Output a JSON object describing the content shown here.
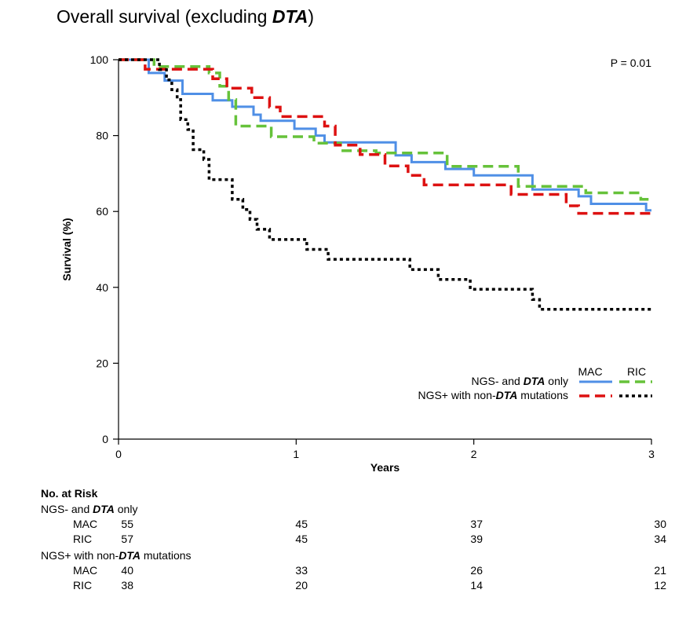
{
  "title": {
    "prefix": "Overall survival (excluding ",
    "italic": "DTA",
    "suffix": ")"
  },
  "chart_data": {
    "type": "line",
    "step": true,
    "xlabel": "Years",
    "ylabel": "Survival (%)",
    "xlim": [
      0,
      3
    ],
    "ylim": [
      0,
      100
    ],
    "xticks": [
      0,
      1,
      2,
      3
    ],
    "yticks": [
      0,
      20,
      40,
      60,
      80,
      100
    ],
    "annotation": "P = 0.01",
    "legend": {
      "placement": "bottom-right",
      "column_headers": [
        "MAC",
        "RIC"
      ],
      "rows": [
        {
          "label_parts": [
            [
              "NGS- and ",
              false
            ],
            [
              "DTA",
              true
            ],
            [
              " only",
              false
            ]
          ]
        },
        {
          "label_parts": [
            [
              "NGS+ with non-",
              false
            ],
            [
              "DTA",
              true
            ],
            [
              " mutations",
              false
            ]
          ]
        }
      ]
    },
    "series": [
      {
        "name": "NGS- and DTA only, MAC",
        "color": "#4f8fe6",
        "dash": "solid",
        "x": [
          0,
          0.17,
          0.26,
          0.36,
          0.53,
          0.64,
          0.76,
          0.8,
          0.99,
          1.11,
          1.16,
          1.25,
          1.4,
          1.56,
          1.65,
          1.84,
          2.0,
          2.33,
          2.59,
          2.66,
          2.97,
          3.0
        ],
        "y": [
          100,
          96.5,
          94.5,
          91,
          89.3,
          87.6,
          85.5,
          83.9,
          81.8,
          80,
          78.2,
          78.2,
          78.2,
          74.8,
          73,
          71.2,
          69.5,
          65.8,
          64,
          62,
          60.3,
          60.3
        ]
      },
      {
        "name": "NGS- and DTA only, RIC",
        "color": "#66c23a",
        "dash": "dash",
        "x": [
          0,
          0.2,
          0.51,
          0.57,
          0.62,
          0.66,
          0.86,
          1.1,
          1.25,
          1.45,
          1.57,
          1.85,
          2.25,
          2.36,
          2.63,
          2.94,
          3.0
        ],
        "y": [
          100,
          98.2,
          96.5,
          93,
          89.5,
          82.5,
          79.7,
          78,
          76,
          75.4,
          75.4,
          71.9,
          66.6,
          66.6,
          64.9,
          63.2,
          63.2
        ]
      },
      {
        "name": "NGS+ with non-DTA mutations, MAC",
        "color": "#dd1111",
        "dash": "dash",
        "x": [
          0,
          0.15,
          0.53,
          0.61,
          0.75,
          0.85,
          0.91,
          1.11,
          1.16,
          1.22,
          1.36,
          1.5,
          1.63,
          1.72,
          2.15,
          2.21,
          2.37,
          2.52,
          2.59,
          3.0
        ],
        "y": [
          100,
          97.5,
          95,
          92.5,
          90,
          87.5,
          85,
          85,
          82.5,
          77.5,
          75,
          72,
          69.5,
          67,
          67,
          64.5,
          64.5,
          61.5,
          59.5,
          59.5
        ]
      },
      {
        "name": "NGS+ with non-DTA mutations, RIC",
        "color": "#000000",
        "dash": "dot",
        "x": [
          0,
          0.23,
          0.27,
          0.3,
          0.33,
          0.35,
          0.39,
          0.42,
          0.48,
          0.51,
          0.64,
          0.7,
          0.74,
          0.78,
          0.85,
          1.06,
          1.18,
          1.27,
          1.64,
          1.8,
          1.86,
          1.98,
          2.33,
          2.37,
          3.0
        ],
        "y": [
          100,
          97.4,
          94.7,
          92.1,
          89.5,
          84.2,
          81.6,
          76.3,
          73.7,
          68.4,
          63.2,
          60.5,
          57.9,
          55.3,
          52.6,
          50,
          47.4,
          47.4,
          44.7,
          42.1,
          42.1,
          39.5,
          36.8,
          34.2,
          34.2
        ]
      }
    ]
  },
  "risk_table": {
    "header": "No. at Risk",
    "groups": [
      {
        "label_parts": [
          [
            "NGS- and ",
            false
          ],
          [
            "DTA",
            true
          ],
          [
            " only",
            false
          ]
        ],
        "rows": [
          {
            "arm": "MAC",
            "values": [
              "55",
              "45",
              "37",
              "30"
            ]
          },
          {
            "arm": "RIC",
            "values": [
              "57",
              "45",
              "39",
              "34"
            ]
          }
        ]
      },
      {
        "label_parts": [
          [
            "NGS+ with non-",
            false
          ],
          [
            "DTA",
            true
          ],
          [
            " mutations",
            false
          ]
        ],
        "rows": [
          {
            "arm": "MAC",
            "values": [
              "40",
              "33",
              "26",
              "21"
            ]
          },
          {
            "arm": "RIC",
            "values": [
              "38",
              "20",
              "14",
              "12"
            ]
          }
        ]
      }
    ]
  }
}
